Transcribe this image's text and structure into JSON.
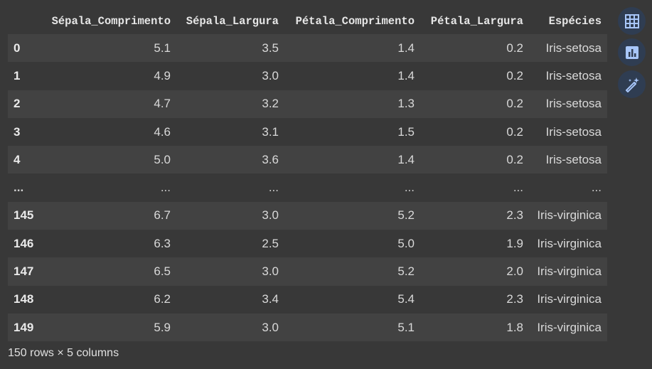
{
  "table": {
    "columns": [
      "",
      "Sépala_Comprimento",
      "Sépala_Largura",
      "Pétala_Comprimento",
      "Pétala_Largura",
      "Espécies"
    ],
    "rows": [
      [
        "0",
        "5.1",
        "3.5",
        "1.4",
        "0.2",
        "Iris-setosa"
      ],
      [
        "1",
        "4.9",
        "3.0",
        "1.4",
        "0.2",
        "Iris-setosa"
      ],
      [
        "2",
        "4.7",
        "3.2",
        "1.3",
        "0.2",
        "Iris-setosa"
      ],
      [
        "3",
        "4.6",
        "3.1",
        "1.5",
        "0.2",
        "Iris-setosa"
      ],
      [
        "4",
        "5.0",
        "3.6",
        "1.4",
        "0.2",
        "Iris-setosa"
      ],
      [
        "...",
        "...",
        "...",
        "...",
        "...",
        "..."
      ],
      [
        "145",
        "6.7",
        "3.0",
        "5.2",
        "2.3",
        "Iris-virginica"
      ],
      [
        "146",
        "6.3",
        "2.5",
        "5.0",
        "1.9",
        "Iris-virginica"
      ],
      [
        "147",
        "6.5",
        "3.0",
        "5.2",
        "2.0",
        "Iris-virginica"
      ],
      [
        "148",
        "6.2",
        "3.4",
        "5.4",
        "2.3",
        "Iris-virginica"
      ],
      [
        "149",
        "5.9",
        "3.0",
        "5.1",
        "1.8",
        "Iris-virginica"
      ]
    ]
  },
  "footer": {
    "summary": "150 rows × 5 columns"
  },
  "side_buttons": [
    {
      "icon": "table-icon"
    },
    {
      "icon": "bar-chart-icon"
    },
    {
      "icon": "magic-wand-icon"
    }
  ],
  "colors": {
    "background": "#383838",
    "stripe": "#424242",
    "button_bg": "#2f3d52",
    "icon_color": "#a8c7fa"
  }
}
